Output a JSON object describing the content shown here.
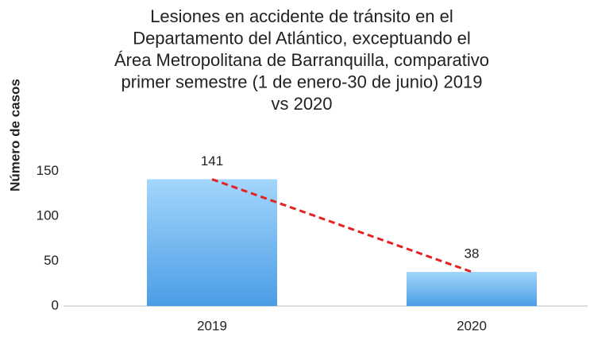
{
  "chart_data": {
    "type": "bar",
    "title": [
      "Lesiones en accidente de tránsito en el",
      "Departamento del Atlántico, exceptuando el",
      "Área Metropolitana de Barranquilla, comparativo",
      "primer semestre (1 de enero-30 de junio) 2019",
      "vs 2020"
    ],
    "y_label": "Número de casos",
    "categories": [
      "2019",
      "2020"
    ],
    "values": [
      141,
      38
    ],
    "color_top": "#a3d6fb",
    "color_bottom": "#4b9de6",
    "trendline": true,
    "trend_color": "#e52222",
    "ylim": [
      0,
      160
    ],
    "yticks": [
      0,
      50,
      100,
      150
    ],
    "grid": false
  }
}
